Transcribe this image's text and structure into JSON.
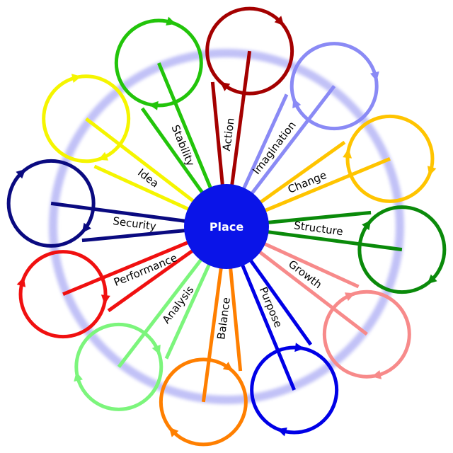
{
  "center": {
    "label": "Place",
    "color": "#0a14e8"
  },
  "ring_color": "#8f8ff0",
  "petals": [
    {
      "label": "Action",
      "color": "#a40000"
    },
    {
      "label": "Imagination",
      "color": "#8a8af5"
    },
    {
      "label": "Change",
      "color": "#ffc400"
    },
    {
      "label": "Structure",
      "color": "#0a8a0a"
    },
    {
      "label": "Growth",
      "color": "#f78a8a"
    },
    {
      "label": "Purpose",
      "color": "#0000e6"
    },
    {
      "label": "Balance",
      "color": "#ff7f00"
    },
    {
      "label": "Analysis",
      "color": "#7cf57c"
    },
    {
      "label": "Performance",
      "color": "#f01010"
    },
    {
      "label": "Security",
      "color": "#0a0a80"
    },
    {
      "label": "Idea",
      "color": "#f5f500"
    },
    {
      "label": "Stability",
      "color": "#22c40a"
    }
  ]
}
